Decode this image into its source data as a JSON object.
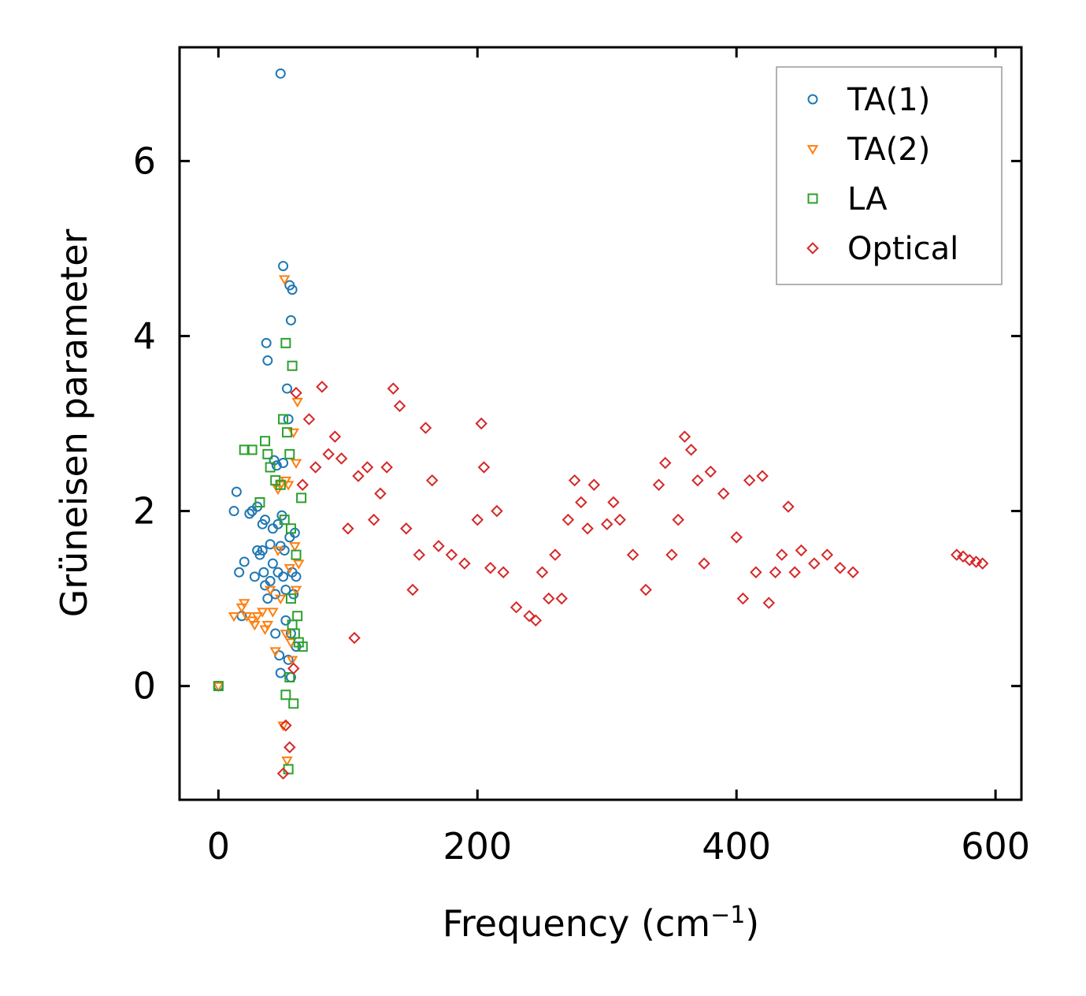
{
  "chart_data": {
    "type": "scatter",
    "title": "",
    "xlabel": "Frequency (cm",
    "xlabel_sup": "−1",
    "xlabel_suffix": ")",
    "ylabel": "Grüneisen parameter",
    "xlim": [
      -30,
      620
    ],
    "ylim": [
      -1.3,
      7.3
    ],
    "xticks": [
      0,
      200,
      400,
      600
    ],
    "yticks": [
      0,
      2,
      4,
      6
    ],
    "xtick_labels": [
      "0",
      "200",
      "400",
      "600"
    ],
    "ytick_labels": [
      "0",
      "2",
      "4",
      "6"
    ],
    "legend_position": "top-right",
    "series": [
      {
        "name": "TA(1)",
        "marker": "circle",
        "color": "#1f77b4",
        "points": [
          [
            0,
            0
          ],
          [
            12,
            2.0
          ],
          [
            14,
            2.22
          ],
          [
            16,
            1.3
          ],
          [
            18,
            0.8
          ],
          [
            20,
            1.42
          ],
          [
            24,
            1.97
          ],
          [
            26,
            2.0
          ],
          [
            28,
            1.25
          ],
          [
            30,
            2.05
          ],
          [
            30,
            1.55
          ],
          [
            32,
            1.5
          ],
          [
            34,
            1.85
          ],
          [
            35,
            1.3
          ],
          [
            36,
            1.9
          ],
          [
            37,
            3.92
          ],
          [
            38,
            3.72
          ],
          [
            38,
            1.0
          ],
          [
            40,
            1.62
          ],
          [
            40,
            1.2
          ],
          [
            42,
            1.8
          ],
          [
            43,
            2.58
          ],
          [
            44,
            0.6
          ],
          [
            45,
            2.52
          ],
          [
            46,
            1.3
          ],
          [
            47,
            0.35
          ],
          [
            48,
            7.0
          ],
          [
            48,
            0.15
          ],
          [
            49,
            1.95
          ],
          [
            50,
            4.8
          ],
          [
            50,
            2.55
          ],
          [
            51,
            1.55
          ],
          [
            52,
            1.1
          ],
          [
            53,
            3.4
          ],
          [
            54,
            3.05
          ],
          [
            55,
            4.58
          ],
          [
            55,
            1.7
          ],
          [
            56,
            4.18
          ],
          [
            56,
            0.1
          ],
          [
            57,
            4.53
          ],
          [
            57,
            1.3
          ],
          [
            58,
            1.05
          ],
          [
            59,
            1.75
          ],
          [
            60,
            0.45
          ],
          [
            42,
            1.4
          ],
          [
            44,
            1.05
          ],
          [
            46,
            1.85
          ],
          [
            48,
            1.6
          ],
          [
            52,
            0.75
          ],
          [
            54,
            0.3
          ],
          [
            34,
            1.55
          ],
          [
            36,
            1.15
          ],
          [
            50,
            1.25
          ],
          [
            56,
            0.6
          ],
          [
            60,
            1.25
          ]
        ]
      },
      {
        "name": "TA(2)",
        "marker": "triangle-down",
        "color": "#ff7f0e",
        "points": [
          [
            0,
            0
          ],
          [
            12,
            0.8
          ],
          [
            18,
            0.9
          ],
          [
            20,
            0.95
          ],
          [
            22,
            0.8
          ],
          [
            26,
            0.75
          ],
          [
            28,
            0.7
          ],
          [
            30,
            0.8
          ],
          [
            34,
            0.85
          ],
          [
            36,
            0.65
          ],
          [
            38,
            0.7
          ],
          [
            40,
            1.1
          ],
          [
            42,
            0.85
          ],
          [
            44,
            0.4
          ],
          [
            46,
            2.25
          ],
          [
            48,
            2.3
          ],
          [
            50,
            -0.45
          ],
          [
            51,
            4.65
          ],
          [
            52,
            2.35
          ],
          [
            53,
            -0.85
          ],
          [
            54,
            2.3
          ],
          [
            55,
            1.35
          ],
          [
            56,
            0.5
          ],
          [
            58,
            2.9
          ],
          [
            59,
            1.6
          ],
          [
            60,
            2.55
          ],
          [
            61,
            3.25
          ],
          [
            62,
            1.4
          ],
          [
            46,
            1.55
          ],
          [
            48,
            1.0
          ],
          [
            52,
            0.6
          ],
          [
            57,
            0.3
          ],
          [
            60,
            1.1
          ]
        ]
      },
      {
        "name": "LA",
        "marker": "square",
        "color": "#2ca02c",
        "points": [
          [
            0,
            0
          ],
          [
            20,
            2.7
          ],
          [
            26,
            2.7
          ],
          [
            32,
            2.1
          ],
          [
            36,
            2.8
          ],
          [
            38,
            2.65
          ],
          [
            40,
            2.5
          ],
          [
            44,
            2.35
          ],
          [
            48,
            2.3
          ],
          [
            50,
            3.05
          ],
          [
            51,
            1.9
          ],
          [
            52,
            3.92
          ],
          [
            53,
            2.9
          ],
          [
            54,
            -0.95
          ],
          [
            55,
            2.65
          ],
          [
            56,
            1.8
          ],
          [
            57,
            3.66
          ],
          [
            58,
            -0.2
          ],
          [
            59,
            0.6
          ],
          [
            60,
            1.5
          ],
          [
            61,
            0.8
          ],
          [
            62,
            0.5
          ],
          [
            64,
            2.15
          ],
          [
            65,
            0.45
          ],
          [
            52,
            -0.1
          ],
          [
            55,
            0.1
          ],
          [
            56,
            1.0
          ],
          [
            57,
            0.7
          ]
        ]
      },
      {
        "name": "Optical",
        "marker": "diamond",
        "color": "#d62728",
        "points": [
          [
            50,
            -1.0
          ],
          [
            52,
            -0.45
          ],
          [
            55,
            -0.7
          ],
          [
            58,
            0.2
          ],
          [
            60,
            3.35
          ],
          [
            65,
            2.3
          ],
          [
            70,
            3.05
          ],
          [
            75,
            2.5
          ],
          [
            80,
            3.42
          ],
          [
            85,
            2.65
          ],
          [
            90,
            2.85
          ],
          [
            95,
            2.6
          ],
          [
            100,
            1.8
          ],
          [
            105,
            0.55
          ],
          [
            108,
            2.4
          ],
          [
            115,
            2.5
          ],
          [
            120,
            1.9
          ],
          [
            125,
            2.2
          ],
          [
            130,
            2.5
          ],
          [
            135,
            3.4
          ],
          [
            140,
            3.2
          ],
          [
            145,
            1.8
          ],
          [
            150,
            1.1
          ],
          [
            155,
            1.5
          ],
          [
            160,
            2.95
          ],
          [
            165,
            2.35
          ],
          [
            170,
            1.6
          ],
          [
            180,
            1.5
          ],
          [
            190,
            1.4
          ],
          [
            200,
            1.9
          ],
          [
            203,
            3.0
          ],
          [
            205,
            2.5
          ],
          [
            210,
            1.35
          ],
          [
            215,
            2.0
          ],
          [
            220,
            1.3
          ],
          [
            230,
            0.9
          ],
          [
            240,
            0.8
          ],
          [
            245,
            0.75
          ],
          [
            250,
            1.3
          ],
          [
            255,
            1.0
          ],
          [
            260,
            1.5
          ],
          [
            265,
            1.0
          ],
          [
            270,
            1.9
          ],
          [
            275,
            2.35
          ],
          [
            280,
            2.1
          ],
          [
            285,
            1.8
          ],
          [
            290,
            2.3
          ],
          [
            300,
            1.85
          ],
          [
            305,
            2.1
          ],
          [
            310,
            1.9
          ],
          [
            320,
            1.5
          ],
          [
            330,
            1.1
          ],
          [
            340,
            2.3
          ],
          [
            345,
            2.55
          ],
          [
            350,
            1.5
          ],
          [
            355,
            1.9
          ],
          [
            360,
            2.85
          ],
          [
            365,
            2.7
          ],
          [
            370,
            2.35
          ],
          [
            375,
            1.4
          ],
          [
            380,
            2.45
          ],
          [
            390,
            2.2
          ],
          [
            400,
            1.7
          ],
          [
            405,
            1.0
          ],
          [
            410,
            2.35
          ],
          [
            415,
            1.3
          ],
          [
            420,
            2.4
          ],
          [
            425,
            0.95
          ],
          [
            430,
            1.3
          ],
          [
            435,
            1.5
          ],
          [
            440,
            2.05
          ],
          [
            445,
            1.3
          ],
          [
            450,
            1.55
          ],
          [
            460,
            1.4
          ],
          [
            470,
            1.5
          ],
          [
            480,
            1.35
          ],
          [
            490,
            1.3
          ],
          [
            570,
            1.5
          ],
          [
            575,
            1.48
          ],
          [
            580,
            1.44
          ],
          [
            585,
            1.42
          ],
          [
            590,
            1.4
          ]
        ]
      }
    ]
  }
}
